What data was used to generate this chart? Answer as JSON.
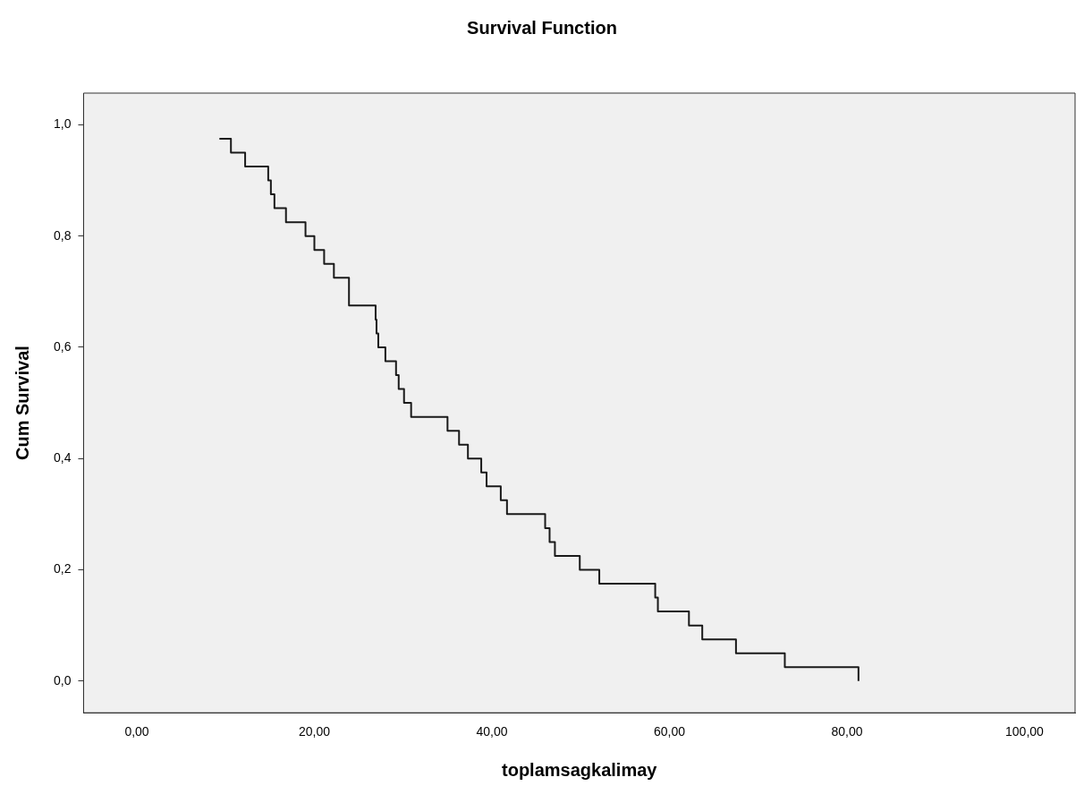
{
  "chart_data": {
    "type": "step",
    "title": "Survival Function",
    "xlabel": "toplamsagkalimay",
    "ylabel": "Cum Survival",
    "xlim": [
      -6,
      105.7
    ],
    "ylim": [
      -0.057,
      1.057
    ],
    "xticks": [
      {
        "value": 0,
        "label": "0,00"
      },
      {
        "value": 20,
        "label": "20,00"
      },
      {
        "value": 40,
        "label": "40,00"
      },
      {
        "value": 60,
        "label": "60,00"
      },
      {
        "value": 80,
        "label": "80,00"
      },
      {
        "value": 100,
        "label": "100,00"
      }
    ],
    "yticks": [
      {
        "value": 0,
        "label": "0,0"
      },
      {
        "value": 0.2,
        "label": "0,2"
      },
      {
        "value": 0.4,
        "label": "0,4"
      },
      {
        "value": 0.6,
        "label": "0,6"
      },
      {
        "value": 0.8,
        "label": "0,8"
      },
      {
        "value": 1,
        "label": "1,0"
      }
    ],
    "grid": false,
    "legend": false,
    "marker": "none",
    "line_style": "solid",
    "series": [
      {
        "color": "#1a1a1a",
        "x": [
          9.3,
          10.6,
          12.2,
          14.8,
          15.1,
          15.5,
          16.8,
          19.0,
          20.0,
          21.1,
          22.2,
          23.9,
          23.9,
          26.9,
          27.0,
          27.2,
          28.0,
          29.2,
          29.5,
          30.1,
          30.9,
          35.0,
          36.3,
          37.3,
          38.8,
          39.4,
          41.0,
          41.7,
          46.0,
          46.5,
          47.1,
          49.9,
          52.1,
          58.4,
          58.7,
          62.2,
          63.7,
          67.5,
          73.0,
          81.3
        ],
        "values": [
          0.975,
          0.95,
          0.925,
          0.9,
          0.875,
          0.85,
          0.825,
          0.8,
          0.775,
          0.75,
          0.725,
          0.7,
          0.675,
          0.65,
          0.625,
          0.6,
          0.575,
          0.55,
          0.525,
          0.5,
          0.475,
          0.45,
          0.425,
          0.4,
          0.375,
          0.35,
          0.325,
          0.3,
          0.275,
          0.25,
          0.225,
          0.2,
          0.175,
          0.15,
          0.125,
          0.1,
          0.075,
          0.05,
          0.025,
          0
        ]
      }
    ]
  }
}
